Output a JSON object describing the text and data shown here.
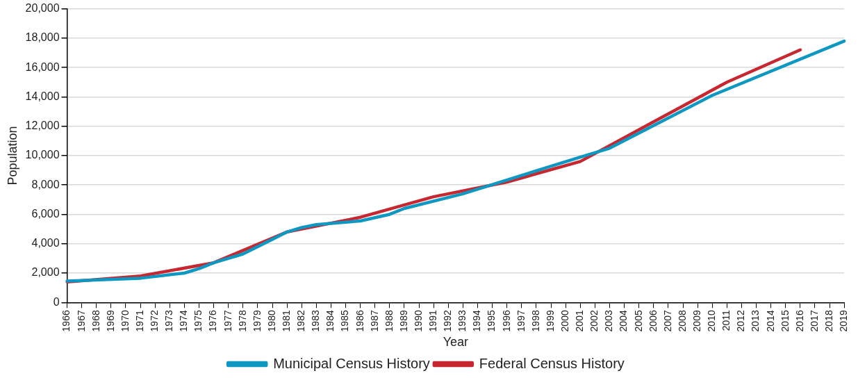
{
  "chart_data": {
    "type": "line",
    "xlabel": "Year",
    "ylabel": "Population",
    "categories": [
      "1966",
      "1967",
      "1968",
      "1969",
      "1970",
      "1971",
      "1972",
      "1973",
      "1974",
      "1975",
      "1976",
      "1977",
      "1978",
      "1979",
      "1980",
      "1981",
      "1982",
      "1983",
      "1984",
      "1985",
      "1986",
      "1987",
      "1988",
      "1989",
      "1990",
      "1991",
      "1992",
      "1993",
      "1994",
      "1995",
      "1996",
      "1997",
      "1998",
      "1999",
      "2000",
      "2001",
      "2002",
      "2003",
      "2004",
      "2005",
      "2006",
      "2007",
      "2008",
      "2009",
      "2010",
      "2011",
      "2012",
      "2013",
      "2014",
      "2015",
      "2016",
      "2017",
      "2018",
      "2019"
    ],
    "series": [
      {
        "name": "Municipal Census History",
        "color": "#0e97c0",
        "values": [
          1450,
          null,
          null,
          null,
          null,
          1650,
          null,
          null,
          2000,
          2300,
          2700,
          null,
          3300,
          null,
          4300,
          4800,
          5100,
          5300,
          null,
          null,
          5550,
          null,
          6000,
          6400,
          null,
          null,
          null,
          7400,
          null,
          null,
          null,
          null,
          null,
          null,
          null,
          9900,
          null,
          10500,
          null,
          null,
          null,
          null,
          null,
          null,
          14100,
          null,
          null,
          null,
          null,
          null,
          null,
          null,
          null,
          17800
        ]
      },
      {
        "name": "Federal Census History",
        "color": "#c62832",
        "values": [
          1400,
          null,
          null,
          null,
          null,
          1800,
          null,
          null,
          null,
          null,
          2700,
          null,
          null,
          null,
          null,
          4800,
          null,
          null,
          null,
          null,
          5800,
          null,
          null,
          null,
          null,
          7200,
          null,
          null,
          null,
          null,
          8200,
          null,
          null,
          null,
          null,
          9600,
          null,
          null,
          null,
          null,
          12300,
          null,
          null,
          null,
          null,
          15000,
          null,
          null,
          null,
          null,
          17200,
          null,
          null,
          null
        ]
      }
    ],
    "ylim": [
      0,
      20000
    ],
    "yticks": [
      0,
      {
        "value": 2000,
        "label": "2,000"
      },
      {
        "value": 4000,
        "label": "4,000"
      },
      {
        "value": 6000,
        "label": "6,000"
      },
      {
        "value": 8000,
        "label": "8,000"
      },
      {
        "value": 10000,
        "label": "10,000"
      },
      {
        "value": 12000,
        "label": "12,000"
      },
      {
        "value": 14000,
        "label": "14,000"
      },
      {
        "value": 16000,
        "label": "16,000"
      },
      {
        "value": 18000,
        "label": "18,000"
      },
      {
        "value": 20000,
        "label": "20,000"
      }
    ],
    "grid": "y",
    "legend": "bottom",
    "marker": "none",
    "line_style": "solid"
  }
}
